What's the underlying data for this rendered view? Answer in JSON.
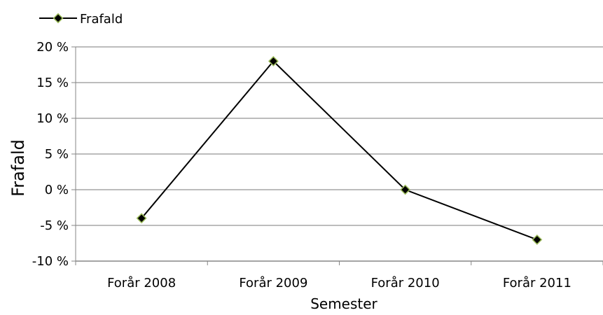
{
  "chart_data": {
    "type": "line",
    "categories": [
      "Forår 2008",
      "Forår 2009",
      "Forår 2010",
      "Forår 2011"
    ],
    "series": [
      {
        "name": "Frafald",
        "values": [
          -4,
          18,
          0,
          -7
        ]
      }
    ],
    "title": "",
    "xlabel": "Semester",
    "ylabel": "Frafald",
    "ylim": [
      -10,
      20
    ],
    "yticks": [
      -10,
      -5,
      0,
      5,
      10,
      15,
      20
    ],
    "ytick_labels": [
      "-10 %",
      "-5 %",
      "0 %",
      "5 %",
      "10 %",
      "15 %",
      "20 %"
    ],
    "grid": true,
    "legend": "top-left",
    "colors": {
      "line": "#000000",
      "marker_fill": "#000000",
      "marker_edge": "#9bbb59",
      "grid": "#a6a6a6",
      "axis": "#868686"
    }
  }
}
